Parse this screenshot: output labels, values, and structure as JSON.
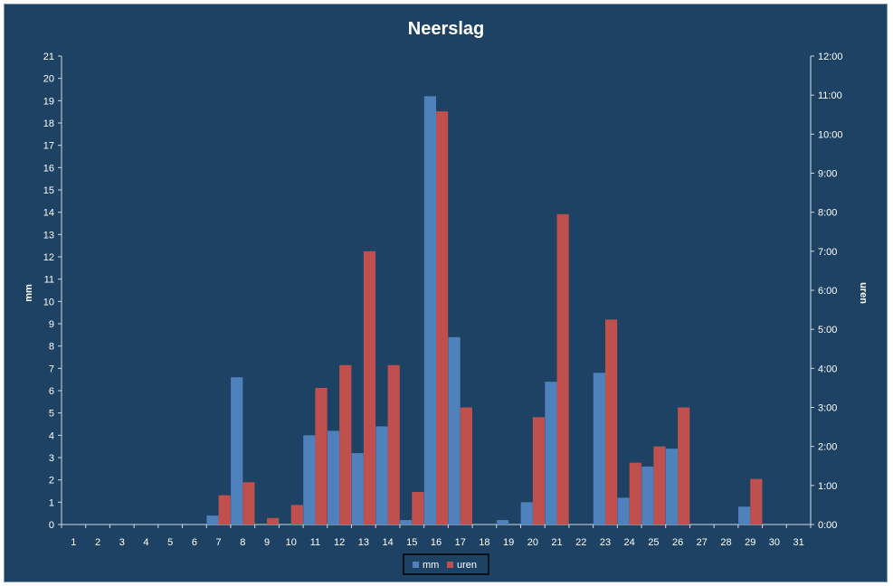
{
  "chart_data": {
    "type": "bar",
    "title": "Neerslag",
    "xlabel": "",
    "ylabel": "mm",
    "y2label": "uren",
    "categories": [
      "1",
      "2",
      "3",
      "4",
      "5",
      "6",
      "7",
      "8",
      "9",
      "10",
      "11",
      "12",
      "13",
      "14",
      "15",
      "16",
      "17",
      "18",
      "19",
      "20",
      "21",
      "22",
      "23",
      "24",
      "25",
      "26",
      "27",
      "28",
      "29",
      "30",
      "31"
    ],
    "ylim": [
      0,
      21
    ],
    "y2lim": [
      0,
      720
    ],
    "y2_ticks": [
      "0:00",
      "1:00",
      "2:00",
      "3:00",
      "4:00",
      "5:00",
      "6:00",
      "7:00",
      "8:00",
      "9:00",
      "10:00",
      "11:00",
      "12:00"
    ],
    "series": [
      {
        "name": "mm",
        "axis": "left",
        "color": "#4f81bd",
        "values": [
          0,
          0,
          0,
          0,
          0,
          0,
          0.4,
          6.6,
          0,
          0,
          4.0,
          4.2,
          3.2,
          4.4,
          0.2,
          19.2,
          8.4,
          0,
          0.2,
          1.0,
          6.4,
          0,
          6.8,
          1.2,
          2.6,
          3.4,
          0,
          0,
          0.8,
          0,
          0
        ]
      },
      {
        "name": "uren",
        "axis": "right",
        "color": "#c0504d",
        "values": [
          0,
          0,
          0,
          0,
          0,
          0,
          45,
          65,
          10,
          30,
          210,
          245,
          420,
          245,
          50,
          635,
          180,
          0,
          0,
          165,
          477,
          0,
          315,
          95,
          120,
          180,
          0,
          0,
          70,
          0,
          0
        ]
      }
    ],
    "grid": false,
    "legend_position": "bottom"
  },
  "colors": {
    "background": "#1e4263",
    "border": "#7f93a8",
    "axis": "#d0d8e0",
    "text": "#ffffff"
  }
}
